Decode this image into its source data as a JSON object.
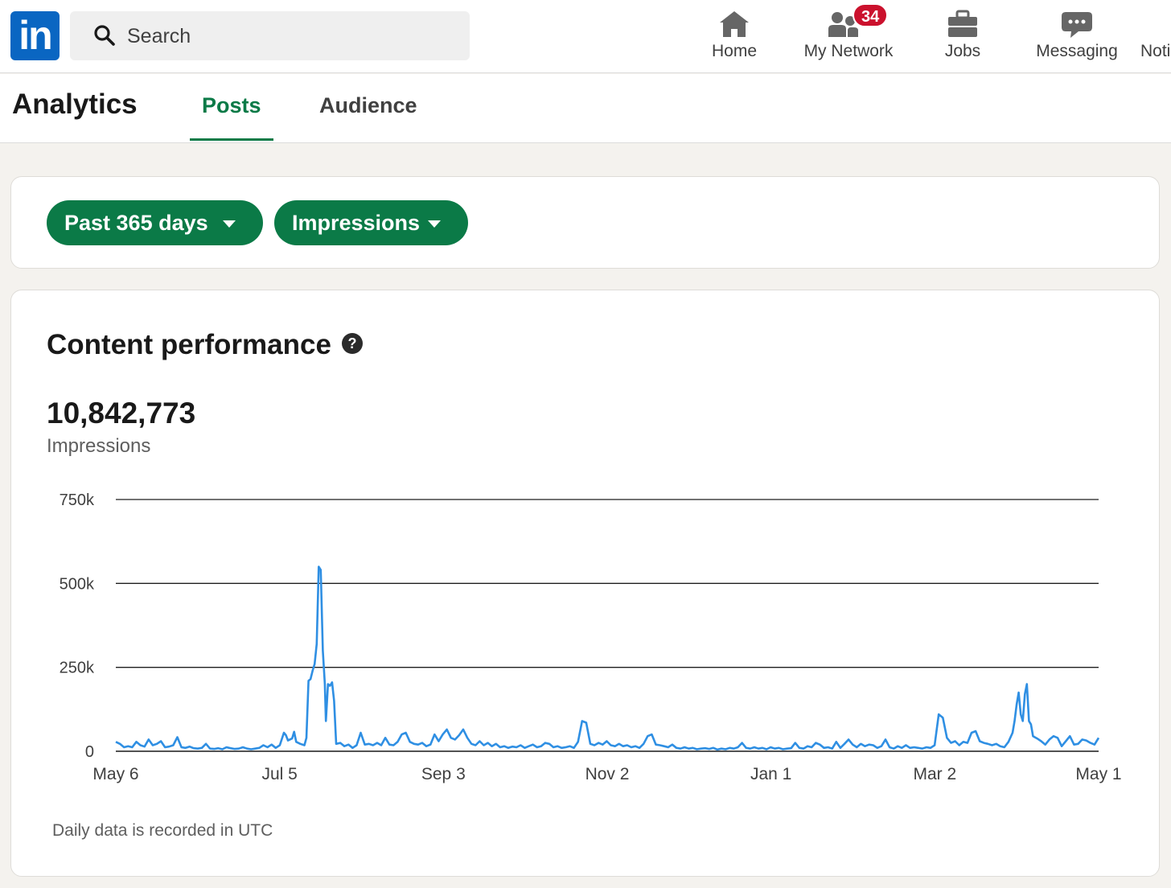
{
  "nav": {
    "logo_text": "in",
    "search_placeholder": "Search",
    "items": [
      {
        "label": "Home",
        "icon": "home-icon"
      },
      {
        "label": "My Network",
        "icon": "people-icon",
        "badge": "34"
      },
      {
        "label": "Jobs",
        "icon": "briefcase-icon"
      },
      {
        "label": "Messaging",
        "icon": "chat-icon"
      },
      {
        "label": "Noti",
        "icon": "bell-icon"
      }
    ]
  },
  "header": {
    "title": "Analytics",
    "tabs": [
      {
        "label": "Posts",
        "active": true
      },
      {
        "label": "Audience",
        "active": false
      }
    ]
  },
  "filters": {
    "range_label": "Past 365 days",
    "metric_label": "Impressions"
  },
  "performance": {
    "title": "Content performance",
    "total": "10,842,773",
    "total_label": "Impressions",
    "footnote": "Daily data is recorded in UTC"
  },
  "colors": {
    "brand": "#0a66c2",
    "accent_green": "#0b7a47",
    "badge_red": "#cb112d",
    "line_blue": "#2f8fe3"
  },
  "chart_data": {
    "type": "line",
    "y_ticks": [
      "0",
      "250k",
      "500k",
      "750k"
    ],
    "y_tick_values": [
      0,
      250000,
      500000,
      750000
    ],
    "ylim": [
      0,
      750000
    ],
    "x_tick_labels": [
      "May 6",
      "Jul 5",
      "Sep 3",
      "Nov 2",
      "Jan 1",
      "Mar 2",
      "May 1"
    ],
    "grid": true,
    "series": [
      {
        "color": "#2f8fe3",
        "points": [
          [
            0,
            28000
          ],
          [
            4,
            22000
          ],
          [
            8,
            12000
          ],
          [
            12,
            15000
          ],
          [
            16,
            12000
          ],
          [
            20,
            28000
          ],
          [
            24,
            18000
          ],
          [
            28,
            14000
          ],
          [
            32,
            35000
          ],
          [
            36,
            18000
          ],
          [
            40,
            22000
          ],
          [
            44,
            30000
          ],
          [
            48,
            12000
          ],
          [
            52,
            14000
          ],
          [
            56,
            18000
          ],
          [
            60,
            42000
          ],
          [
            64,
            12000
          ],
          [
            68,
            10000
          ],
          [
            72,
            14000
          ],
          [
            76,
            9000
          ],
          [
            80,
            8000
          ],
          [
            84,
            10000
          ],
          [
            88,
            22000
          ],
          [
            92,
            8000
          ],
          [
            96,
            7000
          ],
          [
            100,
            9000
          ],
          [
            104,
            6000
          ],
          [
            108,
            12000
          ],
          [
            112,
            9000
          ],
          [
            116,
            7000
          ],
          [
            120,
            8000
          ],
          [
            124,
            12000
          ],
          [
            128,
            8000
          ],
          [
            132,
            6000
          ],
          [
            136,
            8000
          ],
          [
            140,
            10000
          ],
          [
            144,
            18000
          ],
          [
            148,
            12000
          ],
          [
            152,
            20000
          ],
          [
            156,
            10000
          ],
          [
            160,
            18000
          ],
          [
            164,
            55000
          ],
          [
            166,
            48000
          ],
          [
            168,
            32000
          ],
          [
            172,
            38000
          ],
          [
            174,
            58000
          ],
          [
            176,
            28000
          ],
          [
            180,
            22000
          ],
          [
            184,
            18000
          ],
          [
            186,
            40000
          ],
          [
            188,
            210000
          ],
          [
            190,
            215000
          ],
          [
            192,
            240000
          ],
          [
            194,
            260000
          ],
          [
            196,
            320000
          ],
          [
            198,
            550000
          ],
          [
            200,
            540000
          ],
          [
            202,
            300000
          ],
          [
            204,
            200000
          ],
          [
            205,
            90000
          ],
          [
            207,
            200000
          ],
          [
            209,
            195000
          ],
          [
            211,
            205000
          ],
          [
            213,
            150000
          ],
          [
            215,
            22000
          ],
          [
            219,
            25000
          ],
          [
            223,
            15000
          ],
          [
            227,
            20000
          ],
          [
            231,
            10000
          ],
          [
            235,
            18000
          ],
          [
            239,
            55000
          ],
          [
            243,
            20000
          ],
          [
            247,
            22000
          ],
          [
            251,
            18000
          ],
          [
            255,
            25000
          ],
          [
            259,
            18000
          ],
          [
            263,
            40000
          ],
          [
            267,
            20000
          ],
          [
            271,
            18000
          ],
          [
            275,
            28000
          ],
          [
            279,
            50000
          ],
          [
            283,
            55000
          ],
          [
            287,
            28000
          ],
          [
            291,
            22000
          ],
          [
            295,
            20000
          ],
          [
            299,
            25000
          ],
          [
            303,
            15000
          ],
          [
            307,
            20000
          ],
          [
            311,
            50000
          ],
          [
            315,
            30000
          ],
          [
            319,
            50000
          ],
          [
            323,
            65000
          ],
          [
            327,
            40000
          ],
          [
            331,
            35000
          ],
          [
            335,
            48000
          ],
          [
            339,
            65000
          ],
          [
            343,
            40000
          ],
          [
            347,
            22000
          ],
          [
            351,
            18000
          ],
          [
            355,
            30000
          ],
          [
            359,
            18000
          ],
          [
            363,
            25000
          ],
          [
            367,
            15000
          ],
          [
            371,
            22000
          ],
          [
            375,
            12000
          ],
          [
            379,
            15000
          ],
          [
            383,
            10000
          ],
          [
            387,
            14000
          ],
          [
            391,
            12000
          ],
          [
            395,
            18000
          ],
          [
            399,
            10000
          ],
          [
            403,
            15000
          ],
          [
            407,
            20000
          ],
          [
            411,
            12000
          ],
          [
            415,
            15000
          ],
          [
            419,
            25000
          ],
          [
            423,
            22000
          ],
          [
            427,
            12000
          ],
          [
            431,
            15000
          ],
          [
            435,
            10000
          ],
          [
            439,
            12000
          ],
          [
            443,
            15000
          ],
          [
            447,
            10000
          ],
          [
            451,
            28000
          ],
          [
            455,
            90000
          ],
          [
            459,
            85000
          ],
          [
            463,
            22000
          ],
          [
            467,
            18000
          ],
          [
            471,
            25000
          ],
          [
            475,
            20000
          ],
          [
            479,
            30000
          ],
          [
            483,
            18000
          ],
          [
            487,
            15000
          ],
          [
            491,
            22000
          ],
          [
            495,
            15000
          ],
          [
            499,
            18000
          ],
          [
            503,
            12000
          ],
          [
            507,
            15000
          ],
          [
            511,
            10000
          ],
          [
            515,
            22000
          ],
          [
            519,
            45000
          ],
          [
            523,
            50000
          ],
          [
            527,
            20000
          ],
          [
            531,
            18000
          ],
          [
            535,
            15000
          ],
          [
            539,
            12000
          ],
          [
            543,
            20000
          ],
          [
            547,
            10000
          ],
          [
            551,
            8000
          ],
          [
            555,
            12000
          ],
          [
            559,
            8000
          ],
          [
            563,
            10000
          ],
          [
            567,
            6000
          ],
          [
            571,
            8000
          ],
          [
            575,
            9000
          ],
          [
            579,
            7000
          ],
          [
            583,
            10000
          ],
          [
            587,
            5000
          ],
          [
            591,
            8000
          ],
          [
            595,
            6000
          ],
          [
            599,
            10000
          ],
          [
            603,
            8000
          ],
          [
            607,
            12000
          ],
          [
            611,
            25000
          ],
          [
            615,
            10000
          ],
          [
            619,
            8000
          ],
          [
            623,
            12000
          ],
          [
            627,
            8000
          ],
          [
            631,
            10000
          ],
          [
            635,
            6000
          ],
          [
            639,
            12000
          ],
          [
            643,
            8000
          ],
          [
            647,
            10000
          ],
          [
            651,
            6000
          ],
          [
            655,
            8000
          ],
          [
            659,
            9000
          ],
          [
            663,
            25000
          ],
          [
            667,
            10000
          ],
          [
            671,
            8000
          ],
          [
            675,
            15000
          ],
          [
            679,
            12000
          ],
          [
            683,
            25000
          ],
          [
            687,
            20000
          ],
          [
            691,
            10000
          ],
          [
            695,
            12000
          ],
          [
            699,
            8000
          ],
          [
            703,
            28000
          ],
          [
            707,
            10000
          ],
          [
            711,
            22000
          ],
          [
            715,
            35000
          ],
          [
            719,
            20000
          ],
          [
            723,
            12000
          ],
          [
            727,
            22000
          ],
          [
            731,
            15000
          ],
          [
            735,
            20000
          ],
          [
            739,
            18000
          ],
          [
            743,
            10000
          ],
          [
            747,
            15000
          ],
          [
            751,
            35000
          ],
          [
            755,
            12000
          ],
          [
            759,
            8000
          ],
          [
            763,
            15000
          ],
          [
            767,
            10000
          ],
          [
            771,
            18000
          ],
          [
            775,
            10000
          ],
          [
            779,
            12000
          ],
          [
            783,
            10000
          ],
          [
            787,
            8000
          ],
          [
            791,
            12000
          ],
          [
            795,
            10000
          ],
          [
            799,
            18000
          ],
          [
            803,
            110000
          ],
          [
            807,
            100000
          ],
          [
            811,
            40000
          ],
          [
            815,
            25000
          ],
          [
            819,
            30000
          ],
          [
            823,
            18000
          ],
          [
            827,
            28000
          ],
          [
            831,
            25000
          ],
          [
            835,
            55000
          ],
          [
            839,
            60000
          ],
          [
            843,
            30000
          ],
          [
            847,
            25000
          ],
          [
            851,
            22000
          ],
          [
            855,
            18000
          ],
          [
            859,
            22000
          ],
          [
            863,
            15000
          ],
          [
            867,
            12000
          ],
          [
            871,
            28000
          ],
          [
            875,
            55000
          ],
          [
            877,
            90000
          ],
          [
            879,
            140000
          ],
          [
            881,
            175000
          ],
          [
            883,
            110000
          ],
          [
            885,
            90000
          ],
          [
            887,
            170000
          ],
          [
            889,
            200000
          ],
          [
            891,
            90000
          ],
          [
            893,
            80000
          ],
          [
            895,
            45000
          ],
          [
            899,
            38000
          ],
          [
            903,
            30000
          ],
          [
            907,
            20000
          ],
          [
            911,
            35000
          ],
          [
            915,
            45000
          ],
          [
            919,
            40000
          ],
          [
            923,
            15000
          ],
          [
            927,
            30000
          ],
          [
            931,
            45000
          ],
          [
            935,
            20000
          ],
          [
            939,
            22000
          ],
          [
            943,
            35000
          ],
          [
            947,
            32000
          ],
          [
            951,
            25000
          ],
          [
            955,
            20000
          ],
          [
            959,
            40000
          ]
        ]
      }
    ]
  }
}
